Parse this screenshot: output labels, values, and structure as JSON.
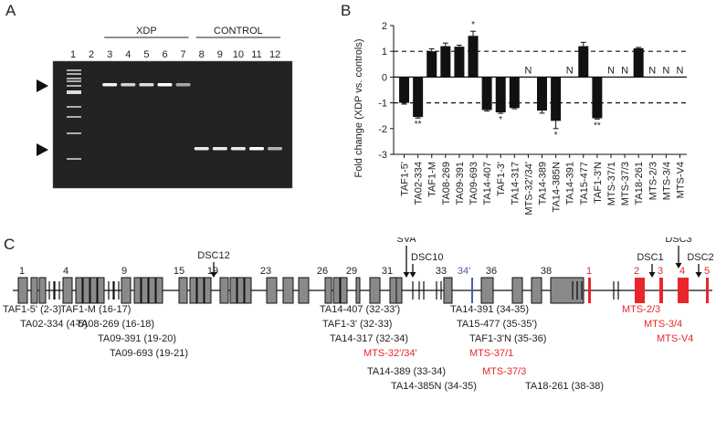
{
  "panels": {
    "A": {
      "label": "A",
      "groups": [
        {
          "name": "XDP",
          "lanes": [
            3,
            4,
            5,
            6,
            7
          ]
        },
        {
          "name": "CONTROL",
          "lanes": [
            8,
            9,
            10,
            11,
            12
          ]
        }
      ],
      "lane_numbers": [
        "1",
        "2",
        "3",
        "4",
        "5",
        "6",
        "7",
        "8",
        "9",
        "10",
        "11",
        "12"
      ],
      "bands": {
        "upper": [
          {
            "lane": 3,
            "intensity": 0.95
          },
          {
            "lane": 4,
            "intensity": 0.8
          },
          {
            "lane": 5,
            "intensity": 0.85
          },
          {
            "lane": 6,
            "intensity": 1.0
          },
          {
            "lane": 7,
            "intensity": 0.6
          }
        ],
        "lower": [
          {
            "lane": 8,
            "intensity": 0.9
          },
          {
            "lane": 9,
            "intensity": 0.9
          },
          {
            "lane": 10,
            "intensity": 0.9
          },
          {
            "lane": 11,
            "intensity": 1.0
          },
          {
            "lane": 12,
            "intensity": 0.65
          }
        ]
      }
    },
    "B": {
      "label": "B"
    },
    "C": {
      "label": "C",
      "exon_numbers": [
        "1",
        "4",
        "9",
        "15",
        "19",
        "23",
        "26",
        "29",
        "31",
        "33",
        "34'",
        "36",
        "38"
      ],
      "mts_exon_numbers": [
        "1",
        "2",
        "3",
        "4",
        "5"
      ],
      "markers": [
        "DSC12",
        "SVA",
        "DSC10",
        "DSC1",
        "DSC3",
        "DSC2"
      ],
      "amplicons_black": [
        "TAF1-5' (2-3)",
        "TA02-334 (4-5)",
        "TAF1-M (16-17)",
        "TA08-269 (16-18)",
        "TA09-391 (19-20)",
        "TA09-693 (19-21)",
        "TA14-407 (32-33')",
        "TAF1-3' (32-33)",
        "TA14-317 (32-34)",
        "TA14-389 (33-34)",
        "TA14-385N (34-35)",
        "TA14-391 (34-35)",
        "TA15-477 (35-35')",
        "TAF1-3'N (35-36)",
        "TA18-261 (38-38)"
      ],
      "amplicons_red": [
        "MTS-32'/34'",
        "MTS-37/1",
        "MTS-37/3",
        "MTS-2/3",
        "MTS-3/4",
        "MTS-V4"
      ]
    }
  },
  "colors": {
    "bar": "#111111",
    "mts_red": "#e8262b",
    "exon_gray": "#8a8a8a",
    "blue_exon": "#4a5ea8",
    "gel_bg": "#202020"
  },
  "chart_data": {
    "type": "bar",
    "title": "",
    "xlabel": "",
    "ylabel": "Fold change (XDP vs. controls)",
    "ylim": [
      -3,
      2
    ],
    "yticks": [
      -3,
      -2,
      -1,
      0,
      1,
      2
    ],
    "reference_lines": [
      1,
      -1
    ],
    "categories": [
      "TAF1-5'",
      "TA02-334",
      "TAF1-M",
      "TA08-269",
      "TA09-391",
      "TA09-693",
      "TA14-407",
      "TAF1-3'",
      "TA14-317",
      "MTS-32'/34'",
      "TA14-389",
      "TA14-385N",
      "TA14-391",
      "TA15-477",
      "TAF1-3'N",
      "MTS-37/1",
      "MTS-37/3",
      "TA18-261",
      "MTS-2/3",
      "MTS-3/4",
      "MTS-V4"
    ],
    "values": [
      -1.0,
      -1.55,
      1.0,
      1.2,
      1.18,
      1.6,
      -1.28,
      -1.37,
      -1.2,
      null,
      -1.3,
      -1.7,
      null,
      1.2,
      -1.6,
      null,
      null,
      1.12,
      null,
      null,
      null
    ],
    "errors": [
      0.05,
      0.04,
      0.1,
      0.12,
      0.06,
      0.18,
      0.04,
      0.04,
      0.03,
      null,
      0.1,
      0.3,
      null,
      0.15,
      0.03,
      null,
      null,
      0.03,
      null,
      null,
      null
    ],
    "annotations": [
      "",
      "**",
      "",
      "",
      "",
      "*",
      "",
      "*",
      "",
      "N",
      "",
      "*",
      "N",
      "",
      "**",
      "N",
      "N",
      "",
      "N",
      "N",
      "N"
    ]
  }
}
